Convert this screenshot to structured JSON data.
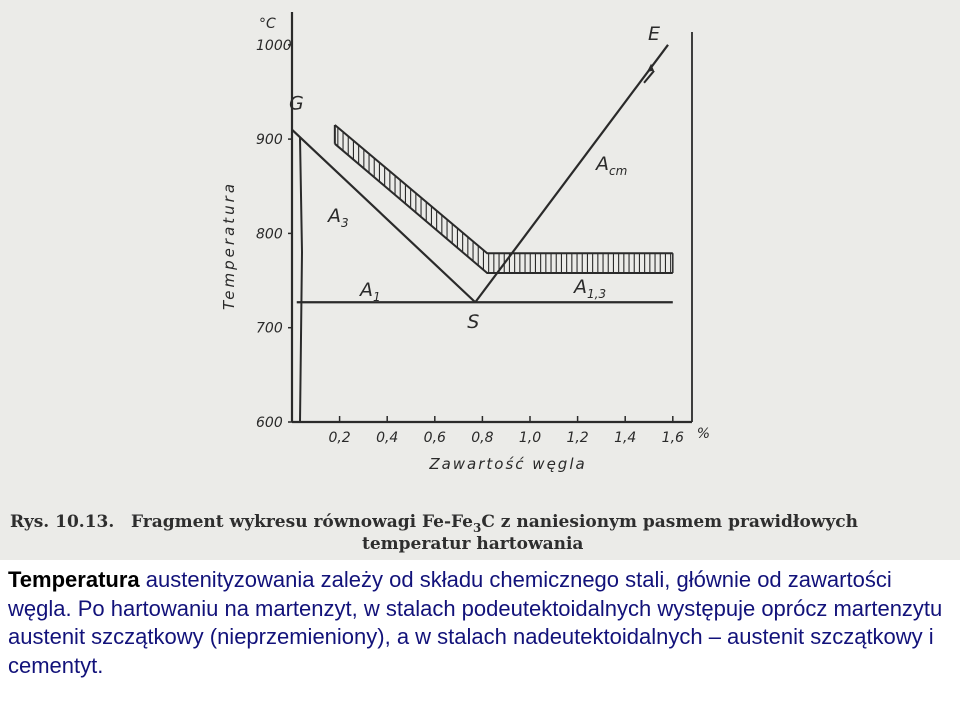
{
  "chart_data": {
    "type": "line",
    "y_unit": "°C",
    "ylabel": "Temperatura",
    "xlabel": "Zawartość węgla",
    "x_unit": "%",
    "ylim": [
      600,
      1000
    ],
    "xlim": [
      0,
      1.7
    ],
    "y_ticks": [
      "600",
      "700",
      "800",
      "900",
      "1000"
    ],
    "x_ticks": [
      "0,2",
      "0,4",
      "0,6",
      "0,8",
      "1,0",
      "1,2",
      "1,4",
      "1,6"
    ],
    "series": [
      {
        "name": "A3",
        "x": [
          0.0,
          0.77
        ],
        "y": [
          910,
          727
        ]
      },
      {
        "name": "Acm",
        "x": [
          0.77,
          1.58
        ],
        "y": [
          727,
          1000
        ]
      },
      {
        "name": "A1",
        "x": [
          0.02,
          1.6
        ],
        "y": [
          727,
          727
        ]
      },
      {
        "name": "hardening range upper",
        "x": [
          0.18,
          0.82,
          1.6
        ],
        "y": [
          915,
          779,
          779
        ]
      },
      {
        "name": "hardening range lower",
        "x": [
          0.18,
          0.82,
          1.6
        ],
        "y": [
          895,
          758,
          758
        ]
      }
    ],
    "points": [
      {
        "label": "G",
        "x": 0.0,
        "y": 910
      },
      {
        "label": "S",
        "x": 0.77,
        "y": 727
      },
      {
        "label": "E",
        "x": 1.58,
        "y": 1000
      }
    ],
    "curve_labels": {
      "a3": "A",
      "a3_sub": "3",
      "acm": "A",
      "acm_sub": "cm",
      "a1": "A",
      "a1_sub": "1",
      "a13": "A",
      "a13_sub": "1,3"
    },
    "grid": false,
    "legend": "none"
  },
  "caption": {
    "rys": "Rys. 10.13.",
    "line1_prefix": "Fragment wykresu równowagi Fe-Fe",
    "sub3": "3",
    "line1_suffix": "C z naniesionym pasmem prawidłowych",
    "line2": "temperatur hartowania"
  },
  "text": {
    "bold_word": "Temperatura",
    "paragraph": " austenityzowania zależy od składu chemicznego stali, głównie od zawartości węgla. Po hartowaniu na martenzyt, w stalach podeutektoidalnych występuje oprócz martenzytu austenit szczątkowy (nieprzemieniony), a w stalach nadeutektoidalnych – austenit szczątkowy i cementyt."
  },
  "colors": {
    "ink": "#2a2a2a",
    "paper": "#ebebe8",
    "text": "#12127a"
  }
}
